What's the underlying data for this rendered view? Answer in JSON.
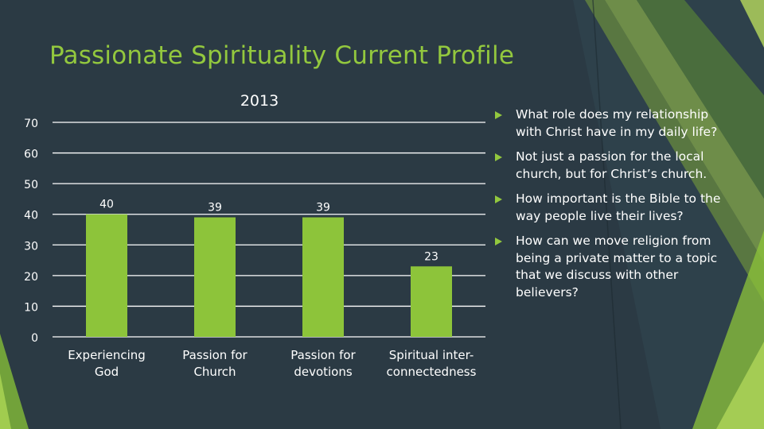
{
  "slide": {
    "title": "Passionate Spirituality Current Profile",
    "colors": {
      "background": "#2b3a44",
      "accent": "#93c83e",
      "bar": "#8dc43a",
      "text": "#ffffff",
      "gridline": "#ffffff"
    }
  },
  "chart_data": {
    "type": "bar",
    "title": "2013",
    "categories": [
      "Experiencing God",
      "Passion for Church",
      "Passion for devotions",
      "Spiritual inter-connectedness"
    ],
    "category_lines": [
      [
        "Experiencing",
        "God"
      ],
      [
        "Passion for",
        "Church"
      ],
      [
        "Passion for",
        "devotions"
      ],
      [
        "Spiritual inter-",
        "connectedness"
      ]
    ],
    "values": [
      40,
      39,
      39,
      23
    ],
    "data_labels": [
      "40",
      "39",
      "39",
      "23"
    ],
    "ylim": [
      0,
      70
    ],
    "yticks": [
      0,
      10,
      20,
      30,
      40,
      50,
      60,
      70
    ],
    "grid": true,
    "legend": "none",
    "xlabel": "",
    "ylabel": ""
  },
  "bullets": [
    "What role does my relationship with Christ have in my daily life?",
    "Not just a passion for the local church, but for Christ’s church.",
    "How important is the Bible to the way people live their lives?",
    "How can we move religion from being a private matter to a topic that we discuss with other believers?"
  ],
  "icons": {
    "bullet": "triangle-bullet-icon"
  }
}
